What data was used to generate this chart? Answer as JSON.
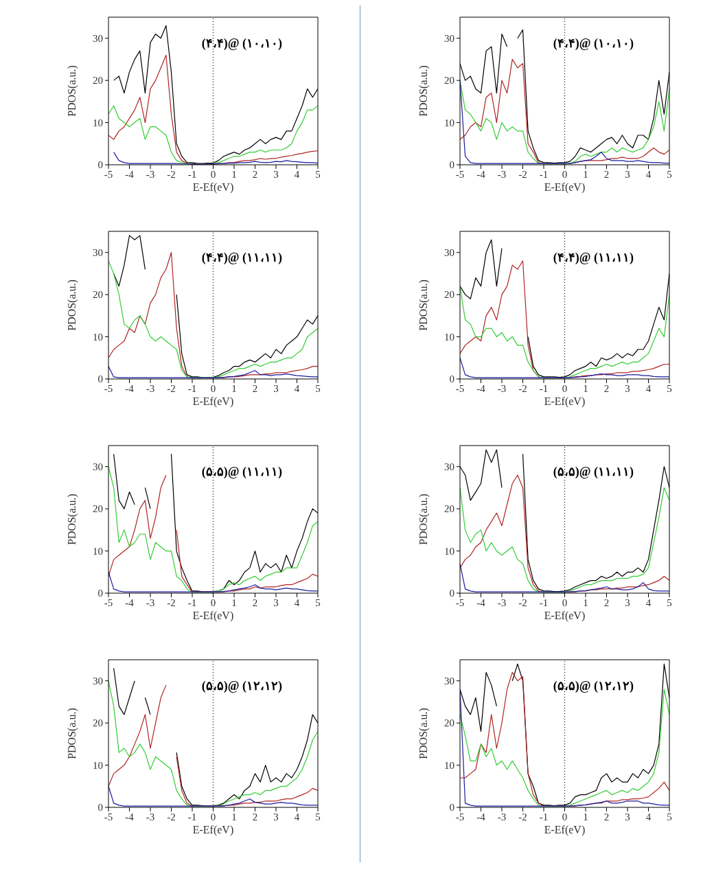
{
  "chart_data": [
    {
      "type": "line",
      "xlabel": "E-Ef(eV)",
      "ylabel": "PDOS(a.u.)",
      "annotations": [
        "(۴،۴)@ (۱۰،۱۰)"
      ],
      "xlim": [
        -5,
        5
      ],
      "xticks": [
        -5,
        -4,
        -3,
        -2,
        -1,
        0,
        1,
        2,
        3,
        4,
        5
      ],
      "ylim": [
        0,
        35
      ],
      "yticks": [
        0,
        10,
        20,
        30
      ],
      "ref_lines": [
        {
          "axis": "x",
          "value": 0,
          "color": "#000000",
          "line_style": "dotted"
        }
      ],
      "x": [
        -5,
        -4.75,
        -4.5,
        -4.25,
        -4,
        -3.75,
        -3.5,
        -3.25,
        -3,
        -2.75,
        -2.5,
        -2.25,
        -2,
        -1.75,
        -1.5,
        -1.25,
        -1,
        -0.75,
        -0.5,
        -0.25,
        0,
        0.25,
        0.5,
        0.75,
        1,
        1.25,
        1.5,
        1.75,
        2,
        2.25,
        2.5,
        2.75,
        3,
        3.25,
        3.5,
        3.75,
        4,
        4.25,
        4.5,
        4.75,
        5
      ],
      "series": [
        {
          "color": "#000000",
          "values": [
            null,
            20,
            21,
            17,
            22,
            25,
            27,
            17,
            29,
            31,
            30,
            33,
            22,
            5,
            2,
            0.5,
            0.5,
            0.3,
            0.3,
            0.4,
            0.4,
            1,
            2,
            2.5,
            3,
            2.5,
            3.5,
            4,
            5,
            6,
            5,
            6,
            6.5,
            6,
            8,
            8,
            11,
            14,
            18,
            16,
            18
          ]
        },
        {
          "color": "#b22222",
          "values": [
            7,
            6,
            8,
            9,
            11,
            13,
            16,
            10,
            18,
            20,
            23,
            26,
            12,
            3,
            1,
            0.3,
            0.1,
            0.1,
            0.1,
            0.1,
            0.1,
            0.2,
            0.3,
            0.5,
            0.5,
            0.8,
            1,
            1,
            1.2,
            1.5,
            1.3,
            1.5,
            1.5,
            1.8,
            2,
            2.2,
            2.5,
            2.7,
            3,
            3.2,
            3.3
          ]
        },
        {
          "color": "#33cc33",
          "values": [
            12,
            14,
            11,
            10,
            9,
            10,
            11,
            6,
            9,
            9,
            8,
            7,
            3,
            1,
            0.5,
            0.2,
            0.2,
            0.2,
            0.2,
            0.2,
            0.2,
            0.5,
            1,
            1.5,
            2,
            2,
            2.5,
            3,
            3,
            3.5,
            3,
            3.5,
            3.5,
            3.5,
            4,
            5,
            8,
            10,
            13,
            13,
            14
          ]
        },
        {
          "color": "#1a1aa0",
          "values": [
            null,
            3,
            1,
            0.5,
            0.3,
            0.3,
            0.3,
            0.3,
            0.3,
            0.3,
            0.3,
            0.3,
            0.3,
            0.3,
            0.2,
            0.2,
            0.2,
            0.2,
            0.2,
            0.2,
            0.2,
            0.3,
            0.3,
            0.4,
            0.4,
            0.5,
            0.5,
            0.6,
            0.8,
            0.6,
            0.5,
            0.6,
            0.8,
            0.7,
            1,
            0.8,
            0.7,
            0.6,
            0.5,
            0.5,
            0.4
          ]
        }
      ]
    },
    {
      "type": "line",
      "xlabel": "E-Ef(eV)",
      "ylabel": "PDOS(a.u.)",
      "annotations": [
        "(۴،۴)@ (۱۰،۱۰)"
      ],
      "xlim": [
        -5,
        5
      ],
      "xticks": [
        -5,
        -4,
        -3,
        -2,
        -1,
        0,
        1,
        2,
        3,
        4,
        5
      ],
      "ylim": [
        0,
        35
      ],
      "yticks": [
        0,
        10,
        20,
        30
      ],
      "ref_lines": [
        {
          "axis": "x",
          "value": 0,
          "color": "#000000",
          "line_style": "dotted"
        }
      ],
      "x": [
        -5,
        -4.75,
        -4.5,
        -4.25,
        -4,
        -3.75,
        -3.5,
        -3.25,
        -3,
        -2.75,
        -2.5,
        -2.25,
        -2,
        -1.75,
        -1.5,
        -1.25,
        -1,
        -0.75,
        -0.5,
        -0.25,
        0,
        0.25,
        0.5,
        0.75,
        1,
        1.25,
        1.5,
        1.75,
        2,
        2.25,
        2.5,
        2.75,
        3,
        3.25,
        3.5,
        3.75,
        4,
        4.25,
        4.5,
        4.75,
        5
      ],
      "series": [
        {
          "color": "#000000",
          "values": [
            24,
            20,
            21,
            18,
            17,
            27,
            28,
            17,
            31,
            28,
            null,
            30,
            32,
            8,
            4,
            1,
            0.5,
            0.5,
            0.4,
            0.5,
            0.5,
            0.8,
            2,
            4,
            3.5,
            3,
            4,
            5,
            6,
            6.5,
            5,
            7,
            5,
            4,
            7,
            7,
            6,
            11,
            20,
            12,
            22
          ]
        },
        {
          "color": "#b22222",
          "values": [
            6,
            7,
            9,
            10,
            9,
            16,
            17,
            10,
            20,
            17,
            25,
            23,
            24,
            5,
            3,
            0.5,
            0.2,
            0.2,
            0.2,
            0.2,
            0.2,
            0.3,
            0.5,
            0.8,
            1,
            1,
            1,
            1,
            1.2,
            1.5,
            1.5,
            1.8,
            1.5,
            1.5,
            1.5,
            2,
            3,
            4,
            3,
            2.5,
            3.5
          ]
        },
        {
          "color": "#33cc33",
          "values": [
            20,
            13,
            12,
            10,
            8,
            11,
            10,
            6,
            10,
            8,
            9,
            8,
            8,
            3,
            1.5,
            0.3,
            0.2,
            0.2,
            0.2,
            0.2,
            0.2,
            0.3,
            0.8,
            2,
            2.5,
            2,
            2.5,
            3,
            3,
            4,
            3,
            4,
            3.5,
            3,
            3.5,
            4,
            6,
            9,
            15,
            8,
            18
          ]
        },
        {
          "color": "#1a1aa0",
          "values": [
            20,
            2,
            0.5,
            0.3,
            0.3,
            0.3,
            0.3,
            0.3,
            0.3,
            0.3,
            0.3,
            0.3,
            0.3,
            0.3,
            0.3,
            0.3,
            0.3,
            0.3,
            0.3,
            0.3,
            0.3,
            0.3,
            0.5,
            0.8,
            1,
            1.2,
            2,
            3,
            1.5,
            1,
            1,
            1,
            0.8,
            0.8,
            1,
            0.8,
            0.6,
            0.5,
            0.5,
            0.4,
            0.4
          ]
        }
      ]
    },
    {
      "type": "line",
      "xlabel": "E-Ef(eV)",
      "ylabel": "PDOS(a.u.)",
      "annotations": [
        "(۴،۴)@ (۱۱،۱۱)"
      ],
      "xlim": [
        -5,
        5
      ],
      "xticks": [
        -5,
        -4,
        -3,
        -2,
        -1,
        0,
        1,
        2,
        3,
        4,
        5
      ],
      "ylim": [
        0,
        35
      ],
      "yticks": [
        0,
        10,
        20,
        30
      ],
      "ref_lines": [
        {
          "axis": "x",
          "value": 0,
          "color": "#000000",
          "line_style": "dotted"
        }
      ],
      "x": [
        -5,
        -4.75,
        -4.5,
        -4.25,
        -4,
        -3.75,
        -3.5,
        -3.25,
        -3,
        -2.75,
        -2.5,
        -2.25,
        -2,
        -1.75,
        -1.5,
        -1.25,
        -1,
        -0.75,
        -0.5,
        -0.25,
        0,
        0.25,
        0.5,
        0.75,
        1,
        1.25,
        1.5,
        1.75,
        2,
        2.25,
        2.5,
        2.75,
        3,
        3.25,
        3.5,
        3.75,
        4,
        4.25,
        4.5,
        4.75,
        5
      ],
      "series": [
        {
          "color": "#000000",
          "values": [
            null,
            25,
            22,
            27,
            34,
            33,
            34,
            26,
            null,
            null,
            null,
            null,
            null,
            20,
            6,
            1,
            0.5,
            0.5,
            0.3,
            0.3,
            0.4,
            0.8,
            1.5,
            2,
            3,
            3,
            4,
            4.5,
            4,
            5,
            6,
            5,
            7,
            6,
            8,
            9,
            10,
            12,
            14,
            13,
            15
          ]
        },
        {
          "color": "#b22222",
          "values": [
            5,
            7,
            8,
            9,
            12,
            11,
            15,
            13,
            18,
            20,
            24,
            26,
            30,
            12,
            3,
            0.5,
            0.2,
            0.2,
            0.2,
            0.2,
            0.2,
            0.3,
            0.3,
            0.5,
            0.5,
            0.6,
            0.8,
            1,
            1,
            1,
            1.2,
            1.2,
            1.5,
            1.5,
            1.5,
            1.8,
            2,
            2.2,
            2.5,
            3,
            3
          ]
        },
        {
          "color": "#33cc33",
          "values": [
            28,
            25,
            20,
            13,
            12,
            14,
            15,
            13,
            10,
            9,
            10,
            9,
            8,
            7,
            2,
            0.5,
            0.3,
            0.3,
            0.3,
            0.3,
            0.3,
            0.5,
            1,
            1.5,
            2,
            2.5,
            2.5,
            3,
            3.5,
            3,
            3.5,
            4,
            4,
            4.5,
            5,
            5,
            6,
            7,
            10,
            11,
            12
          ]
        },
        {
          "color": "#1a1aa0",
          "values": [
            3,
            0.5,
            0.3,
            0.3,
            0.3,
            0.3,
            0.3,
            0.3,
            0.3,
            0.3,
            0.3,
            0.3,
            0.3,
            0.3,
            0.3,
            0.3,
            0.3,
            0.3,
            0.3,
            0.3,
            0.3,
            0.3,
            0.4,
            0.5,
            0.6,
            0.8,
            1,
            1.5,
            2,
            1,
            1,
            0.8,
            1,
            1,
            1.2,
            1,
            0.8,
            0.7,
            0.6,
            0.5,
            0.5
          ]
        }
      ]
    },
    {
      "type": "line",
      "xlabel": "E-Ef(eV)",
      "ylabel": "PDOS(a.u.)",
      "annotations": [
        "(۴،۴)@ (۱۱،۱۱)"
      ],
      "xlim": [
        -5,
        5
      ],
      "xticks": [
        -5,
        -4,
        -3,
        -2,
        -1,
        0,
        1,
        2,
        3,
        4,
        5
      ],
      "ylim": [
        0,
        35
      ],
      "yticks": [
        0,
        10,
        20,
        30
      ],
      "ref_lines": [
        {
          "axis": "x",
          "value": 0,
          "color": "#000000",
          "line_style": "dotted"
        }
      ],
      "x": [
        -5,
        -4.75,
        -4.5,
        -4.25,
        -4,
        -3.75,
        -3.5,
        -3.25,
        -3,
        -2.75,
        -2.5,
        -2.25,
        -2,
        -1.75,
        -1.5,
        -1.25,
        -1,
        -0.75,
        -0.5,
        -0.25,
        0,
        0.25,
        0.5,
        0.75,
        1,
        1.25,
        1.5,
        1.75,
        2,
        2.25,
        2.5,
        2.75,
        3,
        3.25,
        3.5,
        3.75,
        4,
        4.25,
        4.5,
        4.75,
        5
      ],
      "series": [
        {
          "color": "#000000",
          "values": [
            22,
            20,
            19,
            24,
            22,
            30,
            33,
            22,
            31,
            null,
            null,
            null,
            null,
            10,
            3,
            1,
            0.5,
            0.5,
            0.5,
            0.4,
            0.5,
            1,
            2,
            2.5,
            3,
            4,
            3,
            5,
            4.5,
            5,
            6,
            5,
            6,
            5.5,
            7,
            7,
            9,
            13,
            17,
            14,
            25
          ]
        },
        {
          "color": "#b22222",
          "values": [
            6,
            8,
            9,
            10,
            9,
            15,
            17,
            14,
            20,
            22,
            27,
            26,
            28,
            8,
            2,
            0.5,
            0.2,
            0.2,
            0.2,
            0.2,
            0.2,
            0.3,
            0.5,
            0.6,
            0.8,
            0.8,
            1,
            1,
            1.2,
            1.2,
            1.5,
            1.5,
            1.5,
            1.8,
            1.8,
            2,
            2.2,
            2.5,
            3,
            3.5,
            3.5
          ]
        },
        {
          "color": "#33cc33",
          "values": [
            22,
            14,
            13,
            10,
            10,
            12,
            12,
            10,
            11,
            9,
            10,
            8,
            8,
            4,
            2,
            0.5,
            0.2,
            0.2,
            0.2,
            0.2,
            0.2,
            0.5,
            1,
            1.5,
            2,
            2.5,
            2.5,
            3,
            3.5,
            3,
            3.5,
            4,
            3.5,
            4,
            4,
            5,
            6,
            9,
            12,
            10,
            20
          ]
        },
        {
          "color": "#1a1aa0",
          "values": [
            5,
            1,
            0.5,
            0.3,
            0.3,
            0.3,
            0.3,
            0.3,
            0.3,
            0.3,
            0.3,
            0.3,
            0.3,
            0.3,
            0.3,
            0.3,
            0.3,
            0.3,
            0.3,
            0.3,
            0.3,
            0.3,
            0.4,
            0.5,
            0.6,
            0.8,
            1,
            1.2,
            1,
            1,
            0.8,
            0.8,
            1,
            1,
            1,
            0.8,
            0.8,
            0.6,
            0.5,
            0.5,
            0.5
          ]
        }
      ]
    },
    {
      "type": "line",
      "xlabel": "E-Ef(eV)",
      "ylabel": "PDOS(a.u.)",
      "annotations": [
        "(۵،۵)@ (۱۱،۱۱)"
      ],
      "xlim": [
        -5,
        5
      ],
      "xticks": [
        -5,
        -4,
        -3,
        -2,
        -1,
        0,
        1,
        2,
        3,
        4,
        5
      ],
      "ylim": [
        0,
        35
      ],
      "yticks": [
        0,
        10,
        20,
        30
      ],
      "ref_lines": [
        {
          "axis": "x",
          "value": 0,
          "color": "#000000",
          "line_style": "dotted"
        }
      ],
      "x": [
        -5,
        -4.75,
        -4.5,
        -4.25,
        -4,
        -3.75,
        -3.5,
        -3.25,
        -3,
        -2.75,
        -2.5,
        -2.25,
        -2,
        -1.75,
        -1.5,
        -1.25,
        -1,
        -0.75,
        -0.5,
        -0.25,
        0,
        0.25,
        0.5,
        0.75,
        1,
        1.25,
        1.5,
        1.75,
        2,
        2.25,
        2.5,
        2.75,
        3,
        3.25,
        3.5,
        3.75,
        4,
        4.25,
        4.5,
        4.75,
        5
      ],
      "series": [
        {
          "color": "#000000",
          "values": [
            null,
            33,
            22,
            20,
            24,
            21,
            null,
            25,
            20,
            null,
            null,
            null,
            33,
            10,
            6,
            3,
            0.5,
            0.5,
            0.3,
            0.3,
            0.4,
            0.5,
            1,
            3,
            2,
            3,
            5,
            6,
            10,
            5,
            7,
            6,
            7,
            5,
            9,
            6,
            10,
            13,
            17,
            20,
            19
          ]
        },
        {
          "color": "#b22222",
          "values": [
            4,
            8,
            9,
            10,
            11,
            15,
            20,
            22,
            13,
            18,
            25,
            28,
            null,
            15,
            4,
            2,
            0.3,
            0.3,
            0.3,
            0.3,
            0.3,
            0.3,
            0.3,
            0.5,
            0.5,
            0.8,
            1,
            1,
            1.5,
            1.2,
            1.5,
            1.5,
            1.5,
            1.8,
            2,
            2,
            2.5,
            3,
            3.5,
            4.5,
            4
          ]
        },
        {
          "color": "#33cc33",
          "values": [
            30,
            25,
            12,
            15,
            11,
            12,
            14,
            14,
            8,
            12,
            11,
            10,
            10,
            4,
            3,
            1,
            0.2,
            0.2,
            0.2,
            0.2,
            0.2,
            0.5,
            1,
            2,
            2.5,
            2,
            3,
            3.5,
            4,
            3,
            4,
            4.5,
            5,
            5,
            6,
            6,
            6,
            9,
            12,
            16,
            17
          ]
        },
        {
          "color": "#1a1aa0",
          "values": [
            5,
            1,
            0.5,
            0.3,
            0.3,
            0.3,
            0.3,
            0.3,
            0.3,
            0.3,
            0.3,
            0.3,
            0.3,
            0.3,
            0.3,
            0.3,
            0.3,
            0.3,
            0.3,
            0.3,
            0.3,
            0.3,
            0.4,
            0.5,
            0.8,
            1,
            1.2,
            1.5,
            2,
            1.2,
            1,
            1,
            0.8,
            1,
            1.2,
            1,
            1,
            0.8,
            0.6,
            0.5,
            0.5
          ]
        }
      ]
    },
    {
      "type": "line",
      "xlabel": "E-Ef(eV)",
      "ylabel": "PDOS(a.u.)",
      "annotations": [
        "(۵،۵)@ (۱۱،۱۱)"
      ],
      "xlim": [
        -5,
        5
      ],
      "xticks": [
        -5,
        -4,
        -3,
        -2,
        -1,
        0,
        1,
        2,
        3,
        4,
        5
      ],
      "ylim": [
        0,
        35
      ],
      "yticks": [
        0,
        10,
        20,
        30
      ],
      "ref_lines": [
        {
          "axis": "x",
          "value": 0,
          "color": "#000000",
          "line_style": "dotted"
        }
      ],
      "x": [
        -5,
        -4.75,
        -4.5,
        -4.25,
        -4,
        -3.75,
        -3.5,
        -3.25,
        -3,
        -2.75,
        -2.5,
        -2.25,
        -2,
        -1.75,
        -1.5,
        -1.25,
        -1,
        -0.75,
        -0.5,
        -0.25,
        0,
        0.25,
        0.5,
        0.75,
        1,
        1.25,
        1.5,
        1.75,
        2,
        2.25,
        2.5,
        2.75,
        3,
        3.25,
        3.5,
        3.75,
        4,
        4.25,
        4.5,
        4.75,
        5
      ],
      "series": [
        {
          "color": "#000000",
          "values": [
            30,
            28,
            22,
            24,
            26,
            34,
            31,
            34,
            25,
            null,
            null,
            null,
            33,
            8,
            3,
            1,
            0.5,
            0.5,
            0.4,
            0.4,
            0.5,
            0.8,
            1.5,
            2,
            2.5,
            3,
            3,
            4,
            3.5,
            4,
            5,
            4,
            5,
            5,
            6,
            5,
            8,
            15,
            22,
            30,
            25
          ]
        },
        {
          "color": "#b22222",
          "values": [
            6,
            8,
            9,
            11,
            12,
            15,
            17,
            19,
            16,
            21,
            26,
            28,
            25,
            6,
            2,
            0.5,
            0.2,
            0.2,
            0.2,
            0.2,
            0.2,
            0.3,
            0.3,
            0.5,
            0.5,
            0.8,
            0.8,
            1,
            1,
            1,
            1.2,
            1.2,
            1.5,
            1.5,
            1.5,
            1.8,
            2,
            2.5,
            3,
            4,
            3
          ]
        },
        {
          "color": "#33cc33",
          "values": [
            25,
            15,
            12,
            14,
            15,
            10,
            12,
            10,
            9,
            10,
            11,
            8,
            7,
            3,
            1,
            0.3,
            0.2,
            0.2,
            0.2,
            0.2,
            0.2,
            0.5,
            1,
            1.5,
            2,
            2,
            2.5,
            3,
            3,
            3,
            3.5,
            3.5,
            3.5,
            4,
            4,
            4.5,
            6,
            12,
            18,
            25,
            22
          ]
        },
        {
          "color": "#1a1aa0",
          "values": [
            7,
            1,
            0.5,
            0.3,
            0.3,
            0.3,
            0.3,
            0.3,
            0.3,
            0.3,
            0.3,
            0.3,
            0.3,
            0.3,
            0.3,
            0.3,
            0.3,
            0.3,
            0.3,
            0.3,
            0.3,
            0.3,
            0.4,
            0.5,
            0.6,
            0.8,
            1,
            1.2,
            1.5,
            1,
            1,
            0.8,
            0.8,
            1,
            1.5,
            2.5,
            1,
            0.6,
            0.5,
            0.5,
            0.5
          ]
        }
      ]
    },
    {
      "type": "line",
      "xlabel": "E-Ef(eV)",
      "ylabel": "PDOS(a.u.)",
      "annotations": [
        "(۵،۵)@ (۱۲،۱۲)"
      ],
      "xlim": [
        -5,
        5
      ],
      "xticks": [
        -5,
        -4,
        -3,
        -2,
        -1,
        0,
        1,
        2,
        3,
        4,
        5
      ],
      "ylim": [
        0,
        35
      ],
      "yticks": [
        0,
        10,
        20,
        30
      ],
      "ref_lines": [
        {
          "axis": "x",
          "value": 0,
          "color": "#000000",
          "line_style": "dotted"
        }
      ],
      "x": [
        -5,
        -4.75,
        -4.5,
        -4.25,
        -4,
        -3.75,
        -3.5,
        -3.25,
        -3,
        -2.75,
        -2.5,
        -2.25,
        -2,
        -1.75,
        -1.5,
        -1.25,
        -1,
        -0.75,
        -0.5,
        -0.25,
        0,
        0.25,
        0.5,
        0.75,
        1,
        1.25,
        1.5,
        1.75,
        2,
        2.25,
        2.5,
        2.75,
        3,
        3.25,
        3.5,
        3.75,
        4,
        4.25,
        4.5,
        4.75,
        5
      ],
      "series": [
        {
          "color": "#000000",
          "values": [
            null,
            33,
            24,
            22,
            26,
            30,
            null,
            26,
            22,
            null,
            null,
            null,
            null,
            13,
            5,
            2,
            0.5,
            0.5,
            0.4,
            0.3,
            0.4,
            0.5,
            1,
            2,
            3,
            2,
            4,
            5,
            8,
            6,
            10,
            6,
            7,
            6,
            8,
            7,
            9,
            12,
            16,
            22,
            20
          ]
        },
        {
          "color": "#b22222",
          "values": [
            5,
            8,
            9,
            10,
            12,
            15,
            18,
            22,
            14,
            20,
            26,
            29,
            null,
            12,
            4,
            1,
            0.3,
            0.3,
            0.3,
            0.3,
            0.3,
            0.3,
            0.3,
            0.5,
            0.5,
            0.8,
            1,
            1,
            1.2,
            1.2,
            1.5,
            1.5,
            1.5,
            1.8,
            2,
            2,
            2.5,
            3,
            3.5,
            4.5,
            4
          ]
        },
        {
          "color": "#33cc33",
          "values": [
            30,
            24,
            13,
            14,
            12,
            13,
            15,
            13,
            9,
            12,
            11,
            10,
            9,
            4,
            2,
            0.5,
            0.2,
            0.2,
            0.2,
            0.2,
            0.2,
            0.3,
            0.8,
            1.5,
            2,
            2.5,
            3,
            3,
            3.5,
            3,
            4,
            4,
            4.5,
            5,
            5,
            6,
            7,
            9,
            12,
            16,
            18
          ]
        },
        {
          "color": "#1a1aa0",
          "values": [
            5,
            1,
            0.5,
            0.3,
            0.3,
            0.3,
            0.3,
            0.3,
            0.3,
            0.3,
            0.3,
            0.3,
            0.3,
            0.3,
            0.3,
            0.3,
            0.3,
            0.3,
            0.3,
            0.3,
            0.3,
            0.3,
            0.4,
            0.5,
            0.8,
            1,
            1.5,
            2,
            1.2,
            1,
            0.8,
            0.8,
            1,
            1.2,
            1,
            1,
            0.8,
            0.6,
            0.5,
            0.5,
            0.5
          ]
        }
      ]
    },
    {
      "type": "line",
      "xlabel": "E-Ef(eV)",
      "ylabel": "PDOS(a.u.)",
      "annotations": [
        "(۵،۵)@ (۱۲،۱۲)"
      ],
      "xlim": [
        -5,
        5
      ],
      "xticks": [
        -5,
        -4,
        -3,
        -2,
        -1,
        0,
        1,
        2,
        3,
        4,
        5
      ],
      "ylim": [
        0,
        35
      ],
      "yticks": [
        0,
        10,
        20,
        30
      ],
      "ref_lines": [
        {
          "axis": "x",
          "value": 0,
          "color": "#000000",
          "line_style": "dotted"
        }
      ],
      "x": [
        -5,
        -4.75,
        -4.5,
        -4.25,
        -4,
        -3.75,
        -3.5,
        -3.25,
        -3,
        -2.75,
        -2.5,
        -2.25,
        -2,
        -1.75,
        -1.5,
        -1.25,
        -1,
        -0.75,
        -0.5,
        -0.25,
        0,
        0.25,
        0.5,
        0.75,
        1,
        1.25,
        1.5,
        1.75,
        2,
        2.25,
        2.5,
        2.75,
        3,
        3.25,
        3.5,
        3.75,
        4,
        4.25,
        4.5,
        4.75,
        5
      ],
      "series": [
        {
          "color": "#000000",
          "values": [
            28,
            24,
            22,
            26,
            18,
            32,
            29,
            24,
            null,
            null,
            30,
            34,
            30,
            8,
            5,
            1,
            0.5,
            0.5,
            0.4,
            0.5,
            0.5,
            1,
            2.5,
            3,
            3,
            3.5,
            4,
            7,
            8,
            6,
            7,
            6,
            6,
            8,
            7,
            9,
            8,
            10,
            15,
            34,
            26
          ]
        },
        {
          "color": "#b22222",
          "values": [
            7,
            7,
            8,
            9,
            15,
            13,
            22,
            14,
            20,
            28,
            32,
            30,
            31,
            8,
            3,
            1,
            0.3,
            0.3,
            0.3,
            0.3,
            0.3,
            0.3,
            0.3,
            0.5,
            0.6,
            0.8,
            1,
            1,
            1.5,
            1.5,
            1.5,
            1.8,
            1.8,
            2,
            2,
            2.2,
            2.5,
            3.5,
            4.5,
            6,
            4
          ]
        },
        {
          "color": "#33cc33",
          "values": [
            22,
            17,
            11,
            11,
            15,
            12,
            14,
            10,
            11,
            9,
            11,
            9,
            7,
            4,
            2,
            0.5,
            0.2,
            0.2,
            0.2,
            0.2,
            0.2,
            0.5,
            1,
            1.5,
            2,
            2.5,
            3,
            3.5,
            4,
            3,
            3.5,
            4,
            3.5,
            4.5,
            4,
            5,
            6,
            8,
            13,
            28,
            22
          ]
        },
        {
          "color": "#1a1aa0",
          "values": [
            28,
            1,
            0.5,
            0.3,
            0.3,
            0.3,
            0.3,
            0.3,
            0.3,
            0.3,
            0.3,
            0.3,
            0.3,
            0.3,
            0.3,
            0.3,
            0.3,
            0.3,
            0.3,
            0.3,
            0.3,
            0.3,
            0.4,
            0.5,
            0.6,
            0.8,
            1,
            1.2,
            1.5,
            1,
            1,
            1.2,
            1.5,
            1.5,
            1.5,
            1,
            1,
            0.8,
            0.6,
            0.5,
            0.5
          ]
        }
      ]
    }
  ]
}
